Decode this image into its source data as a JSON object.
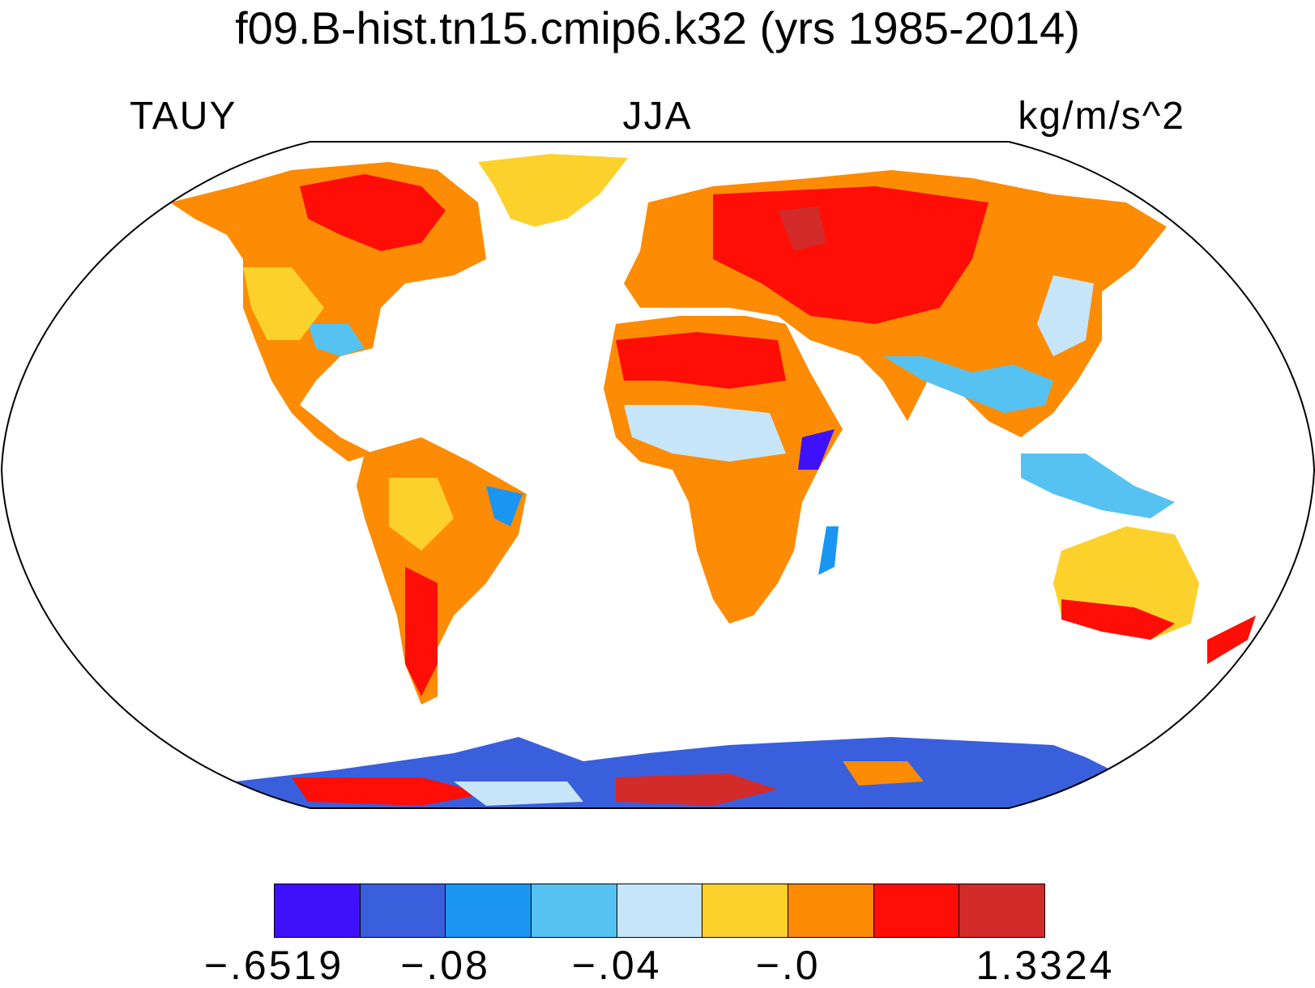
{
  "title": "f09.B-hist.tn15.cmip6.k32 (yrs 1985-2014)",
  "left_label": "TAUY",
  "center_label": "JJA",
  "right_label": "kg/m/s^2",
  "colorbar": {
    "colors": [
      "#3f10fa",
      "#3a5fdc",
      "#1a96f2",
      "#56c2f2",
      "#c7e5f8",
      "#fdd12c",
      "#fd8b03",
      "#fe0e06",
      "#d32a2a"
    ],
    "labels": [
      "−.6519",
      "−.08",
      "−.04",
      "−.0",
      "1.3324"
    ]
  },
  "map": {
    "projection": "Robinson",
    "ocean_color": "#ffffff",
    "coastline_color": "#000000"
  }
}
